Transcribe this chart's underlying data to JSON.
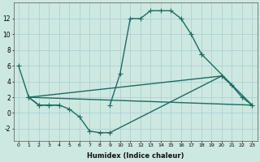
{
  "xlabel": "Humidex (Indice chaleur)",
  "xlim": [
    -0.5,
    23.5
  ],
  "ylim": [
    -3.5,
    14
  ],
  "yticks": [
    -2,
    0,
    2,
    4,
    6,
    8,
    10,
    12
  ],
  "xticks": [
    0,
    1,
    2,
    3,
    4,
    5,
    6,
    7,
    8,
    9,
    10,
    11,
    12,
    13,
    14,
    15,
    16,
    17,
    18,
    19,
    20,
    21,
    22,
    23
  ],
  "bg_color": "#cce8e0",
  "grid_color": "#aacccc",
  "line_color": "#1e6b60",
  "linewidth": 1.0,
  "markersize": 2.5,
  "line1_x": [
    0,
    1,
    2,
    3,
    4,
    9,
    10,
    11,
    12,
    13,
    14,
    15,
    16,
    17,
    18,
    23
  ],
  "line1_y": [
    6,
    2,
    1,
    1,
    1,
    1,
    5,
    12,
    12,
    13,
    13,
    13,
    12,
    10,
    7.5,
    1
  ],
  "line1_breaks": [
    [
      4,
      9
    ]
  ],
  "line2_x": [
    1,
    2,
    3,
    4,
    5,
    6,
    7,
    8,
    9,
    20,
    21,
    22,
    23
  ],
  "line2_y": [
    2,
    1,
    1,
    1,
    0.5,
    -0.5,
    -2.3,
    -2.5,
    -2.5,
    4.7,
    3.5,
    2.0,
    1.0
  ],
  "line2_break": [
    9,
    20
  ],
  "line3_x": [
    1,
    23
  ],
  "line3_y": [
    2,
    1
  ],
  "line4_x": [
    1,
    20
  ],
  "line4_y": [
    2,
    4.7
  ]
}
